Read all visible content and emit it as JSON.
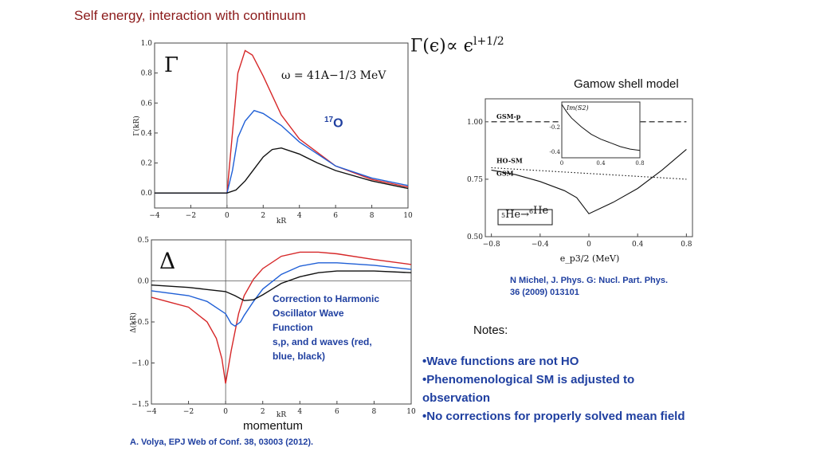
{
  "slide": {
    "title": "Self energy, interaction with continuum",
    "formula": {
      "lhs": "Γ(ϵ)∝ ϵ",
      "exponent": "l+1/2"
    },
    "gsm_label": "Gamow shell model",
    "gsm_reference": [
      "N Michel, J. Phys. G: Nucl. Part. Phys.",
      "36 (2009) 013101"
    ],
    "notes_heading": "Notes:",
    "notes": [
      "•Wave functions are not HO",
      "•Phenomenological SM is adjusted to observation",
      "•No corrections for properly solved mean field"
    ],
    "correction_text": [
      "Correction to Harmonic",
      "Oscillator Wave",
      "Function",
      "s,p, and d waves (red,",
      "blue, black)"
    ],
    "momentum_label": "momentum",
    "volya_reference": "A. Volya, EPJ Web of Conf. 38, 03003 (2012).",
    "o17": {
      "mass": "17",
      "symbol": "O"
    }
  },
  "chart_data": [
    {
      "type": "line",
      "symbol": "Γ",
      "annotation": "ω = 41A−1/3 MeV",
      "xlabel": "kR",
      "ylabel": "Γ(kR)",
      "xlim": [
        -4,
        10
      ],
      "ylim": [
        -0.1,
        1.0
      ],
      "xticks": [
        "−4",
        "−2",
        "0",
        "2",
        "4",
        "6",
        "8",
        "10"
      ],
      "yticks": [
        "0.0",
        "0.2",
        "0.4",
        "0.6",
        "0.8",
        "1.0"
      ],
      "series": [
        {
          "color": "#d62728",
          "x": [
            -4,
            0,
            0.3,
            0.6,
            1,
            1.4,
            2,
            3,
            4,
            6,
            8,
            10
          ],
          "y": [
            0,
            0,
            0.4,
            0.8,
            0.95,
            0.92,
            0.78,
            0.52,
            0.36,
            0.18,
            0.09,
            0.04
          ]
        },
        {
          "color": "#1f5fd6",
          "x": [
            -4,
            0,
            0.3,
            0.6,
            1,
            1.5,
            2,
            3,
            4,
            6,
            8,
            10
          ],
          "y": [
            0,
            0,
            0.15,
            0.37,
            0.48,
            0.55,
            0.53,
            0.45,
            0.34,
            0.18,
            0.1,
            0.05
          ]
        },
        {
          "color": "#111111",
          "x": [
            -4,
            0,
            0.5,
            1,
            1.5,
            2,
            2.5,
            3,
            4,
            5,
            6,
            8,
            10
          ],
          "y": [
            0,
            0,
            0.02,
            0.08,
            0.16,
            0.24,
            0.29,
            0.3,
            0.26,
            0.2,
            0.15,
            0.08,
            0.03
          ]
        }
      ]
    },
    {
      "type": "line",
      "symbol": "Δ",
      "xlabel": "kR",
      "ylabel": "Δ(kR)",
      "xlim": [
        -4,
        10
      ],
      "ylim": [
        -1.5,
        0.5
      ],
      "xticks": [
        "−4",
        "−2",
        "0",
        "2",
        "4",
        "6",
        "8",
        "10"
      ],
      "yticks": [
        "0.5",
        "0.0",
        "−0.5",
        "−1.0",
        "−1.5"
      ],
      "series": [
        {
          "color": "#d62728",
          "x": [
            -4,
            -2,
            -1,
            -0.5,
            -0.2,
            0,
            0.3,
            0.7,
            1,
            1.5,
            2,
            3,
            4,
            5,
            6,
            8,
            10
          ],
          "y": [
            -0.2,
            -0.32,
            -0.5,
            -0.7,
            -0.95,
            -1.25,
            -0.85,
            -0.4,
            -0.18,
            0.02,
            0.15,
            0.3,
            0.35,
            0.35,
            0.33,
            0.26,
            0.2
          ]
        },
        {
          "color": "#1f5fd6",
          "x": [
            -4,
            -2,
            -1,
            0,
            0.3,
            0.5,
            0.8,
            1,
            1.5,
            2,
            3,
            4,
            5,
            6,
            8,
            10
          ],
          "y": [
            -0.12,
            -0.18,
            -0.25,
            -0.4,
            -0.52,
            -0.55,
            -0.5,
            -0.42,
            -0.25,
            -0.1,
            0.08,
            0.18,
            0.22,
            0.22,
            0.19,
            0.14
          ]
        },
        {
          "color": "#111111",
          "x": [
            -4,
            -2,
            0,
            0.5,
            1,
            1.5,
            2,
            2.5,
            3,
            4,
            5,
            6,
            8,
            10
          ],
          "y": [
            -0.05,
            -0.08,
            -0.13,
            -0.18,
            -0.24,
            -0.23,
            -0.17,
            -0.1,
            -0.03,
            0.05,
            0.1,
            0.12,
            0.12,
            0.1
          ]
        }
      ]
    },
    {
      "type": "line",
      "xlabel": "e_p3/2 (MeV)",
      "xlim": [
        -0.85,
        0.85
      ],
      "ylim": [
        0.5,
        1.1
      ],
      "xticks": [
        "−0.8",
        "−0.4",
        "0",
        "0.4",
        "0.8"
      ],
      "yticks": [
        "1.00",
        "0.75",
        "0.50"
      ],
      "labels": [
        "GSM-p",
        "HO-SM",
        "GSM"
      ],
      "box_label": [
        "5",
        "He",
        "6",
        "He"
      ],
      "series": [
        {
          "name": "GSM-p",
          "style": "dashed",
          "x": [
            -0.8,
            0.8
          ],
          "y": [
            1.0,
            1.0
          ]
        },
        {
          "name": "HO-SM",
          "style": "dotted",
          "x": [
            -0.8,
            0.8
          ],
          "y": [
            0.8,
            0.75
          ]
        },
        {
          "name": "GSM",
          "style": "solid",
          "x": [
            -0.8,
            -0.6,
            -0.4,
            -0.2,
            -0.1,
            0,
            0.2,
            0.4,
            0.6,
            0.8
          ],
          "y": [
            0.79,
            0.77,
            0.74,
            0.7,
            0.67,
            0.6,
            0.65,
            0.71,
            0.79,
            0.88
          ]
        }
      ],
      "inset": {
        "ylabel": "Im(S2)",
        "xlim": [
          0,
          0.8
        ],
        "ylim": [
          -0.45,
          0
        ],
        "xticks": [
          "0",
          "0.4",
          "0.8"
        ],
        "yticks": [
          "-0.2",
          "-0.4"
        ],
        "x": [
          0,
          0.05,
          0.1,
          0.2,
          0.3,
          0.4,
          0.5,
          0.6,
          0.7,
          0.8
        ],
        "y": [
          -0.02,
          -0.08,
          -0.13,
          -0.2,
          -0.26,
          -0.3,
          -0.33,
          -0.36,
          -0.38,
          -0.39
        ]
      }
    }
  ]
}
